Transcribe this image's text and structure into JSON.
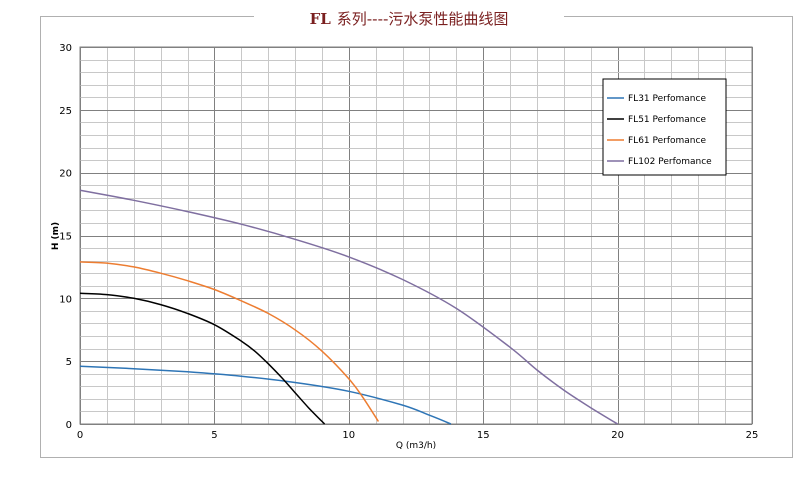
{
  "chart_data": {
    "type": "line",
    "title_part1": "FL",
    "title_part2": "系列----污水泵性能曲线图",
    "xlabel": "Q (m3/h)",
    "ylabel": "H (m)",
    "xlim": [
      0,
      25
    ],
    "ylim": [
      0,
      30
    ],
    "x_ticks": [
      "0",
      "5",
      "10",
      "15",
      "20",
      "25"
    ],
    "y_ticks": [
      "0",
      "5",
      "10",
      "15",
      "20",
      "25",
      "30"
    ],
    "grid": true,
    "legend_position": "top-right",
    "series": [
      {
        "name": "FL31 Perfomance",
        "color": "#2e75b6",
        "x": [
          0,
          2,
          4,
          6,
          8,
          10,
          12,
          13,
          13.8
        ],
        "y": [
          4.6,
          4.4,
          4.15,
          3.8,
          3.3,
          2.6,
          1.5,
          0.7,
          0
        ]
      },
      {
        "name": "FL51 Perfomance",
        "color": "#000000",
        "x": [
          0,
          1,
          2,
          3,
          4,
          5,
          6,
          6.5,
          7,
          7.5,
          8,
          8.5,
          9.1
        ],
        "y": [
          10.4,
          10.3,
          10.0,
          9.5,
          8.8,
          7.9,
          6.6,
          5.8,
          4.8,
          3.7,
          2.5,
          1.3,
          0
        ]
      },
      {
        "name": "FL61 Perfomance",
        "color": "#ed7d31",
        "x": [
          0,
          1,
          2,
          3,
          4,
          5,
          6,
          7,
          8,
          9,
          10,
          10.5,
          11.1
        ],
        "y": [
          12.9,
          12.8,
          12.5,
          12.0,
          11.4,
          10.7,
          9.8,
          8.8,
          7.5,
          5.8,
          3.6,
          2.2,
          0.2
        ]
      },
      {
        "name": "FL102 Perfomance",
        "color": "#7f6fa0",
        "x": [
          0,
          2,
          4,
          6,
          8,
          10,
          12,
          14,
          16,
          17,
          18,
          19,
          20
        ],
        "y": [
          18.6,
          17.8,
          16.9,
          15.9,
          14.7,
          13.3,
          11.5,
          9.2,
          6.1,
          4.3,
          2.7,
          1.3,
          0
        ]
      }
    ]
  }
}
